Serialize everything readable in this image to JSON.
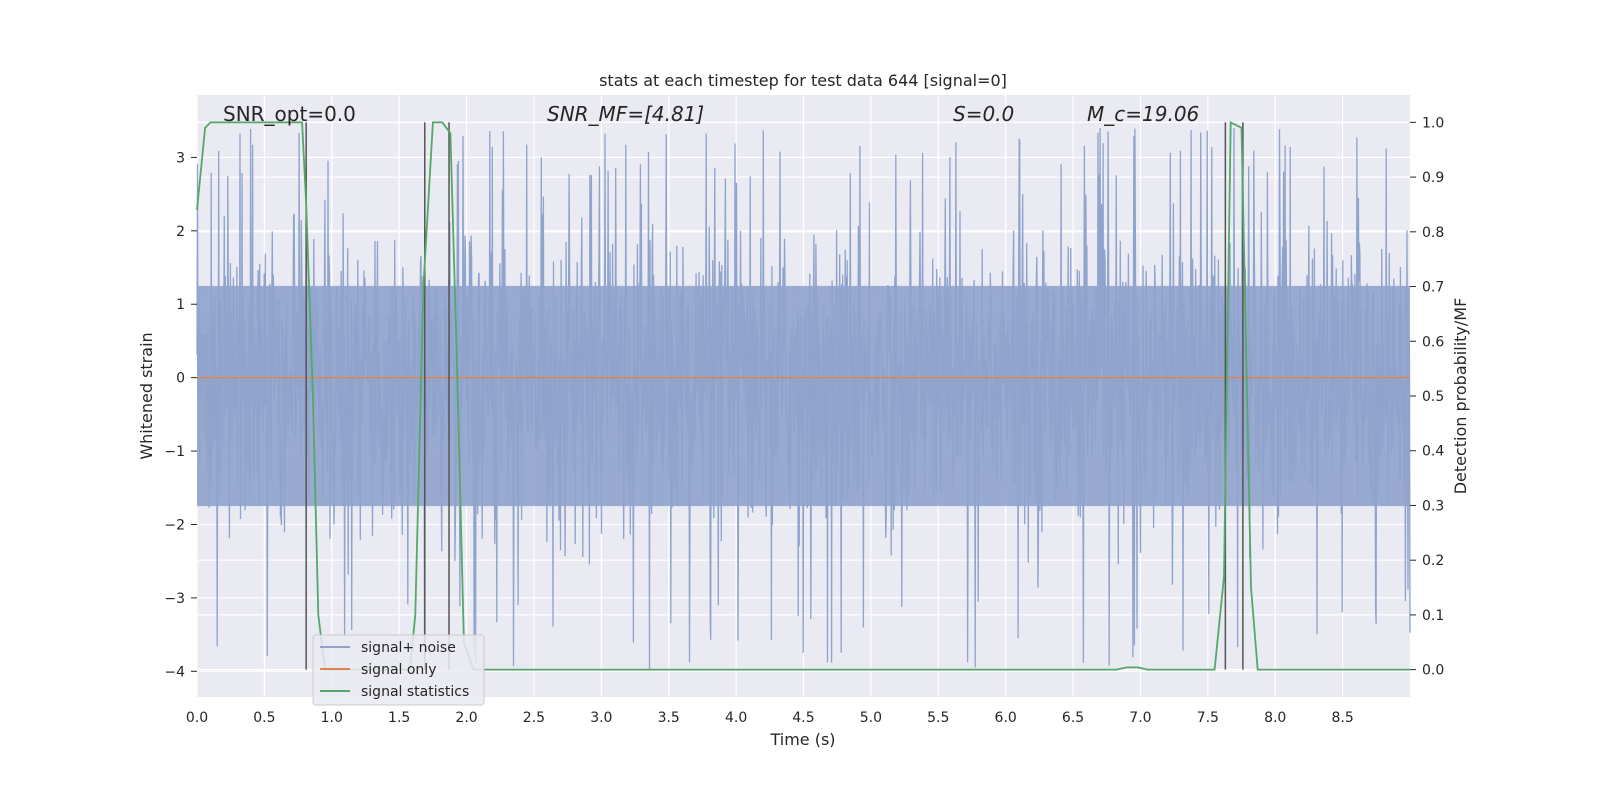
{
  "chart_data": {
    "type": "line",
    "title": "stats at each timestep for test data 644 [signal=0]",
    "xlabel": "Time (s)",
    "ylabel": "Whitened strain",
    "y2label": "Detection probability/MF",
    "xlim": [
      0.0,
      9.0
    ],
    "ylim": [
      -4.35,
      3.85
    ],
    "y2lim": [
      -0.05,
      1.05
    ],
    "x_ticks": [
      "0.0",
      "0.5",
      "1.0",
      "1.5",
      "2.0",
      "2.5",
      "3.0",
      "3.5",
      "4.0",
      "4.5",
      "5.0",
      "5.5",
      "6.0",
      "6.5",
      "7.0",
      "7.5",
      "8.0",
      "8.5"
    ],
    "y_ticks": [
      "3",
      "2",
      "1",
      "0",
      "−1",
      "−2",
      "−3",
      "−4"
    ],
    "y2_ticks": [
      "1.0",
      "0.9",
      "0.8",
      "0.7",
      "0.6",
      "0.5",
      "0.4",
      "0.3",
      "0.2",
      "0.1",
      "0.0"
    ],
    "grid": true,
    "legend_position": "lower-left",
    "colors": {
      "noise": "#8fa3cc",
      "signal": "#dd8452",
      "stats": "#55a868",
      "vlines": "#555555",
      "plot_bg": "#eaeaf2",
      "grid": "#ffffff"
    },
    "series": [
      {
        "name": "signal+ noise",
        "color": "#8fa3cc",
        "axis": "left",
        "amplitude_envelope": {
          "typical_max": 2.5,
          "typical_min": -2.6,
          "extreme_max": 3.4,
          "extreme_min": -4.0
        }
      },
      {
        "name": "signal only",
        "color": "#dd8452",
        "axis": "left",
        "x": [
          0.0,
          9.0
        ],
        "y": [
          0.0,
          0.0
        ]
      },
      {
        "name": "signal statistics",
        "color": "#55a868",
        "axis": "right",
        "x": [
          0.0,
          0.06,
          0.1,
          0.2,
          0.4,
          0.6,
          0.78,
          0.81,
          0.86,
          0.9,
          0.95,
          1.0,
          1.2,
          1.4,
          1.58,
          1.62,
          1.68,
          1.75,
          1.82,
          1.88,
          1.93,
          1.98,
          2.05,
          3.0,
          4.0,
          5.0,
          6.0,
          6.82,
          6.9,
          6.98,
          7.05,
          7.2,
          7.4,
          7.55,
          7.62,
          7.67,
          7.75,
          7.82,
          7.87,
          7.95,
          8.5,
          9.0
        ],
        "y": [
          0.84,
          0.99,
          1.0,
          1.0,
          1.0,
          1.0,
          1.0,
          0.85,
          0.5,
          0.1,
          0.0,
          0.0,
          0.0,
          0.0,
          0.0,
          0.1,
          0.7,
          1.0,
          1.0,
          0.98,
          0.55,
          0.05,
          0.0,
          0.0,
          0.0,
          0.0,
          0.0,
          0.0,
          0.004,
          0.004,
          0.0,
          0.0,
          0.0,
          0.0,
          0.17,
          1.0,
          0.99,
          0.15,
          0.0,
          0.0,
          0.0,
          0.0
        ]
      }
    ],
    "vertical_lines": [
      0.81,
      1.69,
      1.87,
      7.63,
      7.76
    ],
    "annotations": [
      {
        "label": "SNR_opt=0.0",
        "x": 0.19
      },
      {
        "label": "SNR_MF=[4.81]",
        "x": 2.6
      },
      {
        "label": "S=0.0",
        "x": 5.6
      },
      {
        "label": "M_c=19.06",
        "x": 6.6
      }
    ]
  }
}
